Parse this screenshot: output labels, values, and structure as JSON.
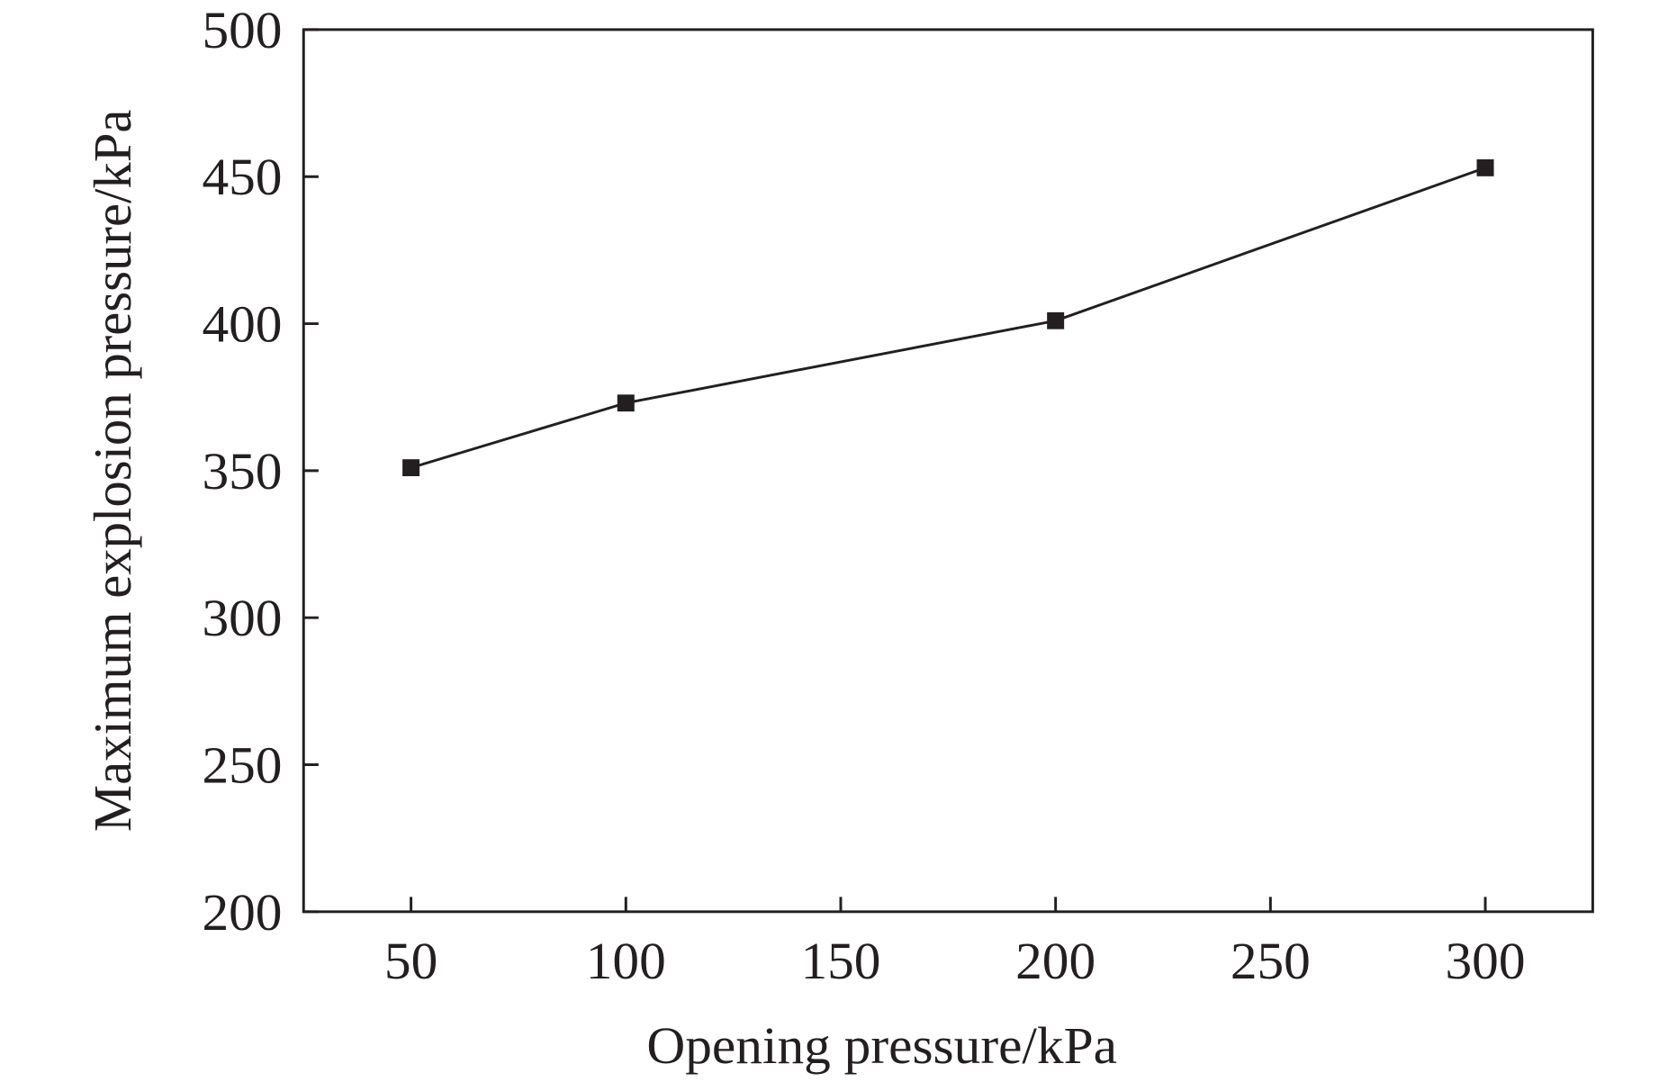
{
  "chart_data": {
    "type": "line",
    "title": "",
    "xlabel": "Opening pressure/kPa",
    "ylabel": "Maximum explosion pressure/kPa",
    "xlim": [
      25,
      325
    ],
    "ylim": [
      200,
      500
    ],
    "xticks": [
      50,
      100,
      150,
      200,
      250,
      300
    ],
    "yticks": [
      200,
      250,
      300,
      350,
      400,
      450,
      500
    ],
    "grid": false,
    "series": [
      {
        "x": [
          50,
          100,
          200,
          300
        ],
        "y": [
          351,
          373,
          401,
          453
        ],
        "marker": "square",
        "color": "#231f20"
      }
    ]
  }
}
